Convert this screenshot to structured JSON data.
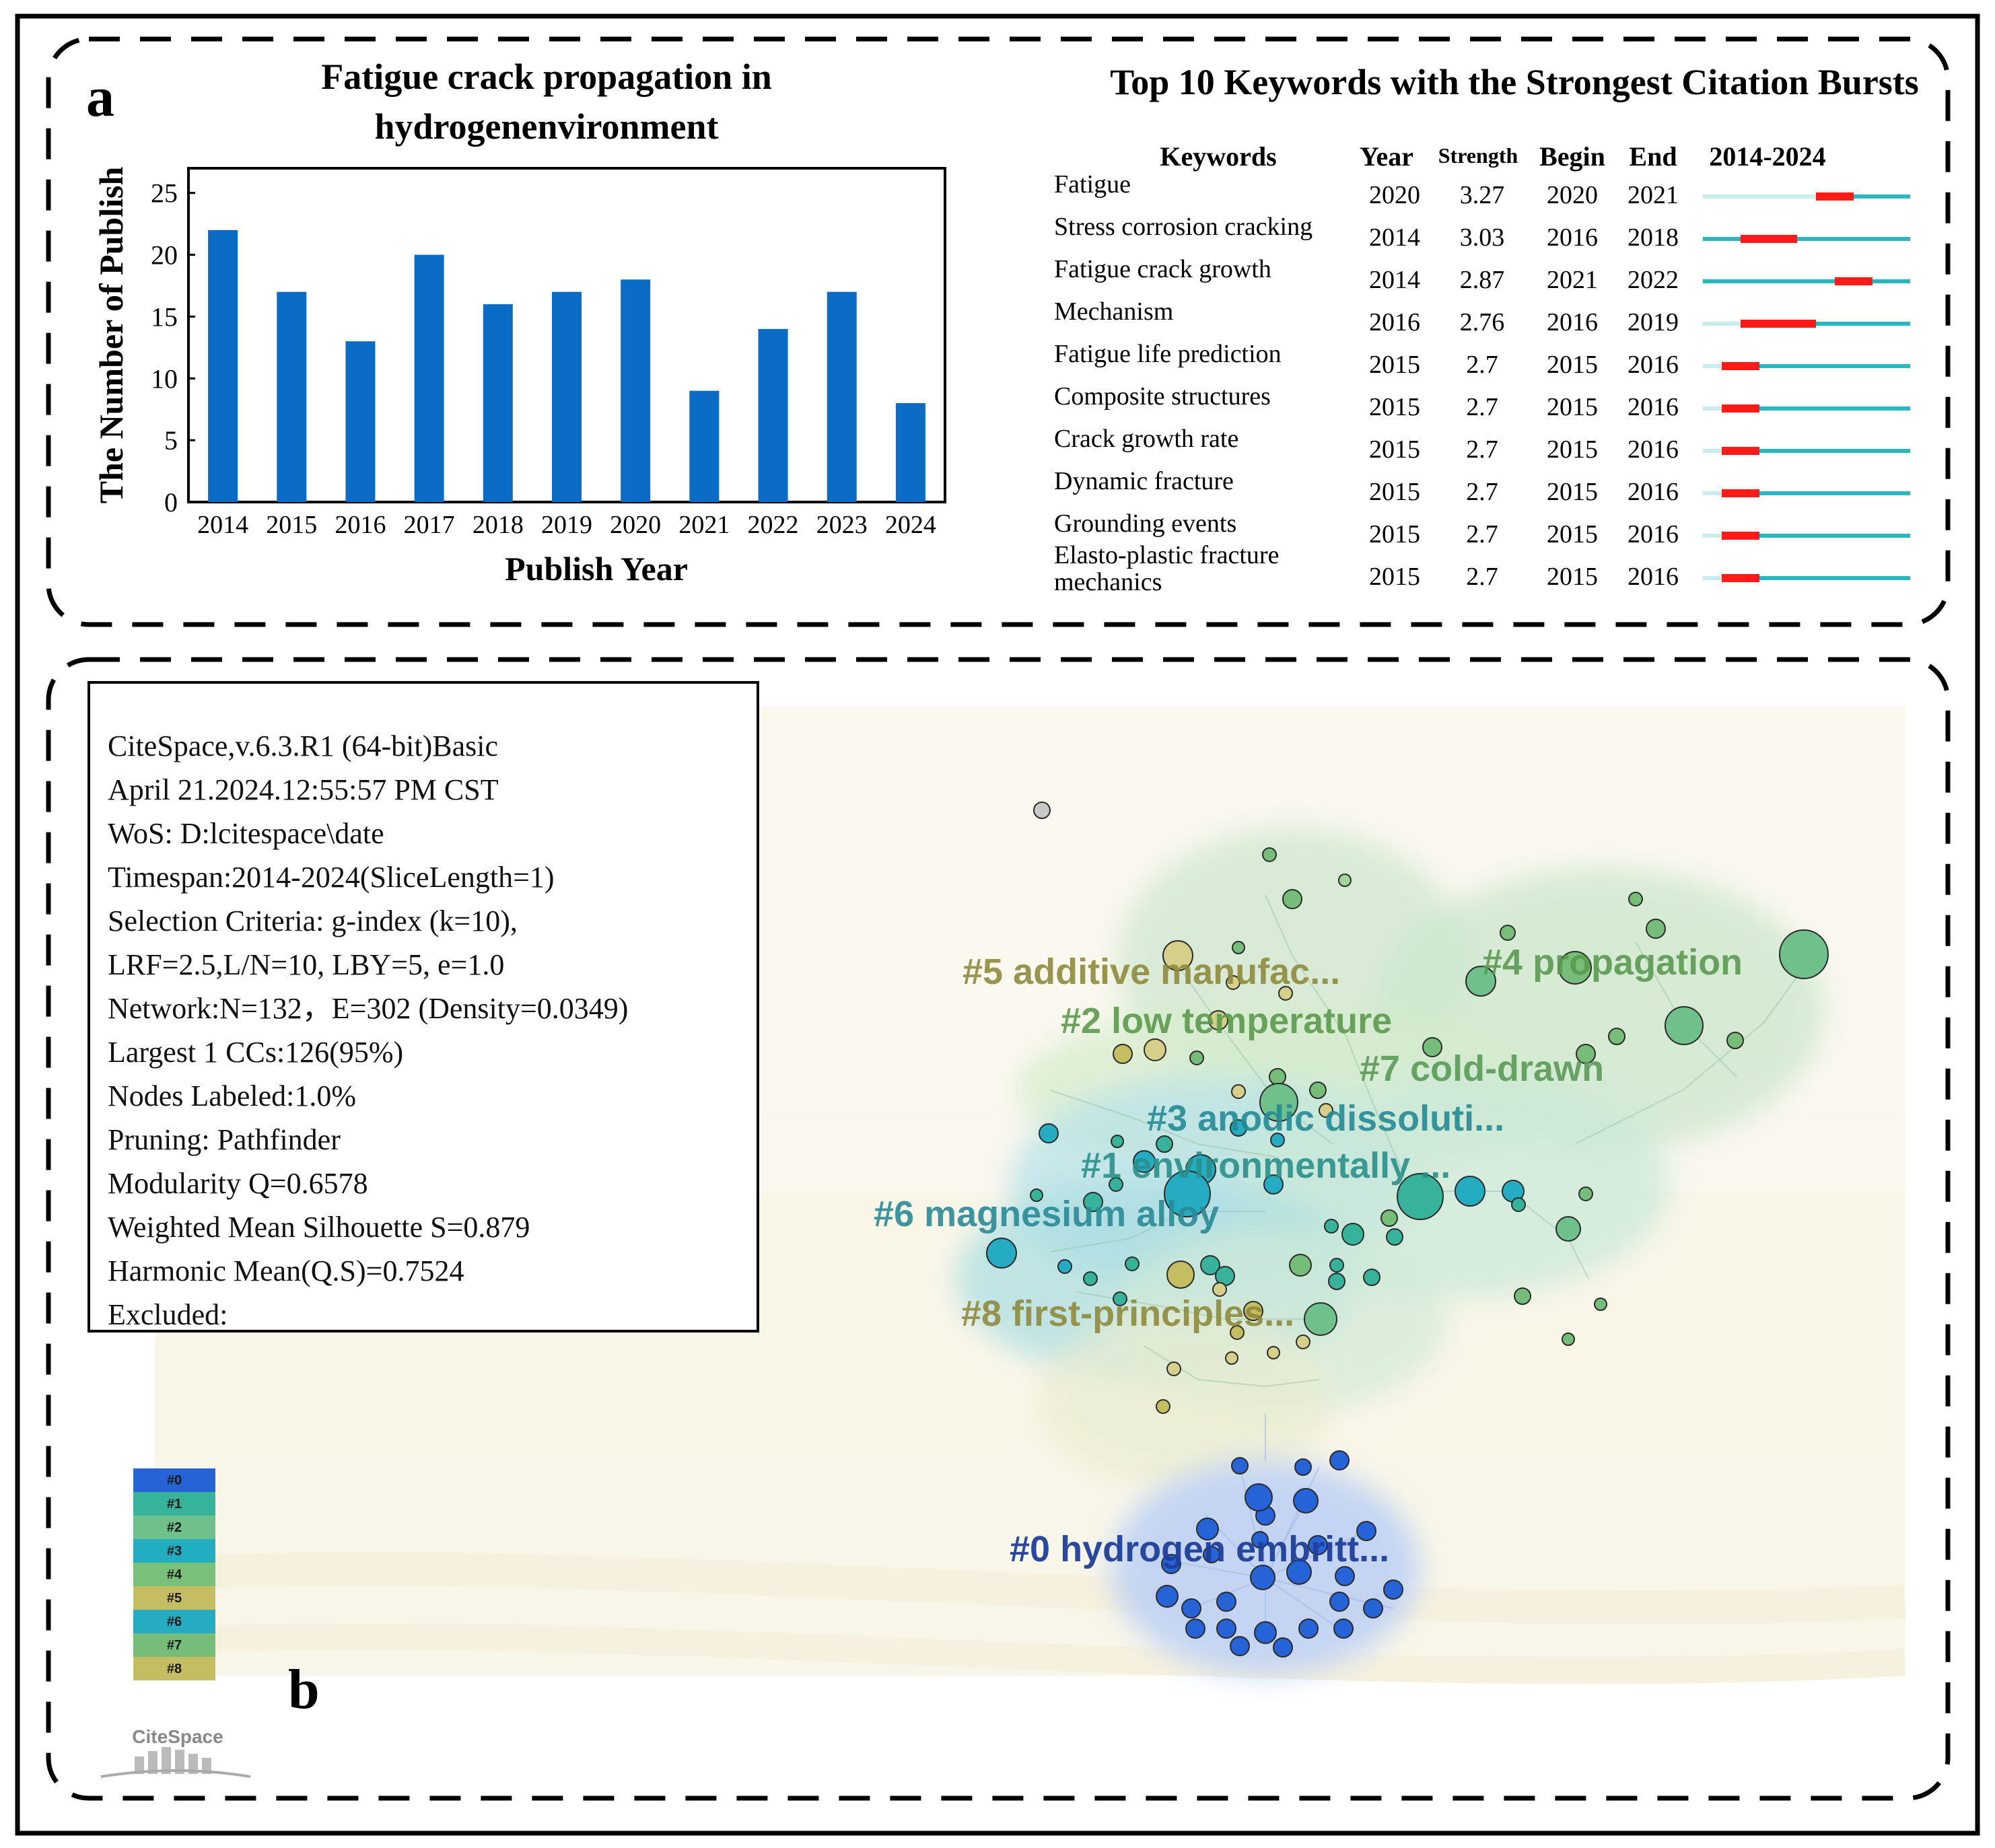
{
  "panel_a": {
    "label": "a",
    "bar_chart_title_line1": "Fatigue crack propagation in",
    "bar_chart_title_line2": "hydrogenenvironment",
    "burst_title": "Top 10 Keywords with the Strongest Citation Bursts",
    "burst_headers": {
      "keywords": "Keywords",
      "year": "Year",
      "strength": "Strength",
      "begin": "Begin",
      "end": "End",
      "span": "2014-2024"
    }
  },
  "panel_b": {
    "label": "b",
    "info_lines": [
      "CiteSpace,v.6.3.R1 (64-bit)Basic",
      "April 21.2024.12:55:57 PM CST",
      "WoS: D:lcitespace\\date",
      "Timespan:2014-2024(SliceLength=1)",
      "Selection Criteria: g-index (k=10),",
      "LRF=2.5,L/N=10, LBY=5, e=1.0",
      "Network:N=132，E=302 (Density=0.0349)",
      "Largest 1 CCs:126(95%)",
      "Nodes Labeled:1.0%",
      "Pruning: Pathfinder",
      "Modularity Q=0.6578",
      "Weighted Mean Silhouette S=0.879",
      "Harmonic Mean(Q.S)=0.7524",
      "Excluded:"
    ],
    "clusters": [
      {
        "id": "#0",
        "label": "#0 hydrogen embritt...",
        "color": "#1f3f9a",
        "swatch": "#2563d6"
      },
      {
        "id": "#1",
        "label": "#1 environmentally ...",
        "color": "#2a8f8a",
        "swatch": "#36b39a"
      },
      {
        "id": "#2",
        "label": "#2 low temperature",
        "color": "#5c9a4c",
        "swatch": "#6fc08a"
      },
      {
        "id": "#3",
        "label": "#3 anodic dissoluti...",
        "color": "#258a96",
        "swatch": "#23adc0"
      },
      {
        "id": "#4",
        "label": "#4 propagation",
        "color": "#5a9a50",
        "swatch": "#79c178"
      },
      {
        "id": "#5",
        "label": "#5 additive manufac...",
        "color": "#8f8a3c",
        "swatch": "#c4bd62"
      },
      {
        "id": "#6",
        "label": "#6 magnesium alloy",
        "color": "#2a8a96",
        "swatch": "#25acc2"
      },
      {
        "id": "#7",
        "label": "#7 cold-drawn",
        "color": "#5a9a56",
        "swatch": "#76bd79"
      },
      {
        "id": "#8",
        "label": "#8 first-principles...",
        "color": "#8f8a3c",
        "swatch": "#c4bd62"
      }
    ],
    "logo_text": "CiteSpace"
  },
  "chart_data": [
    {
      "type": "bar",
      "title": "Fatigue crack propagation in hydrogenenvironment",
      "xlabel": "Publish Year",
      "ylabel": "The Number of Publish",
      "categories": [
        "2014",
        "2015",
        "2016",
        "2017",
        "2018",
        "2019",
        "2020",
        "2021",
        "2022",
        "2023",
        "2024"
      ],
      "values": [
        22,
        17,
        13,
        20,
        16,
        17,
        18,
        9,
        14,
        17,
        8
      ],
      "ylim": [
        0,
        27
      ],
      "yticks": [
        "0",
        "5",
        "10",
        "15",
        "20",
        "25"
      ],
      "bar_color": "#0a6cc4",
      "grid": false
    },
    {
      "type": "table",
      "title": "Top 10 Keywords with the Strongest Citation Bursts",
      "span_start": 2014,
      "span_end": 2024,
      "burst_color": "#ff1a1a",
      "active_color": "#2ab8c0",
      "inactive_color": "#c9ecee",
      "rows": [
        {
          "keyword": "Fatigue",
          "year": "2020",
          "strength": "3.27",
          "begin": "2020",
          "end": "2021"
        },
        {
          "keyword": "Stress corrosion cracking",
          "year": "2014",
          "strength": "3.03",
          "begin": "2016",
          "end": "2018"
        },
        {
          "keyword": "Fatigue crack growth",
          "year": "2014",
          "strength": "2.87",
          "begin": "2021",
          "end": "2022"
        },
        {
          "keyword": "Mechanism",
          "year": "2016",
          "strength": "2.76",
          "begin": "2016",
          "end": "2019"
        },
        {
          "keyword": "Fatigue life prediction",
          "year": "2015",
          "strength": "2.7",
          "begin": "2015",
          "end": "2016"
        },
        {
          "keyword": "Composite structures",
          "year": "2015",
          "strength": "2.7",
          "begin": "2015",
          "end": "2016"
        },
        {
          "keyword": "Crack growth rate",
          "year": "2015",
          "strength": "2.7",
          "begin": "2015",
          "end": "2016"
        },
        {
          "keyword": "Dynamic fracture",
          "year": "2015",
          "strength": "2.7",
          "begin": "2015",
          "end": "2016"
        },
        {
          "keyword": "Grounding events",
          "year": "2015",
          "strength": "2.7",
          "begin": "2015",
          "end": "2016"
        },
        {
          "keyword": "Elasto-plastic fracture mechanics",
          "keyword_line1": "Elasto-plastic fracture",
          "keyword_line2": "mechanics",
          "year": "2015",
          "strength": "2.7",
          "begin": "2015",
          "end": "2016"
        }
      ]
    }
  ]
}
